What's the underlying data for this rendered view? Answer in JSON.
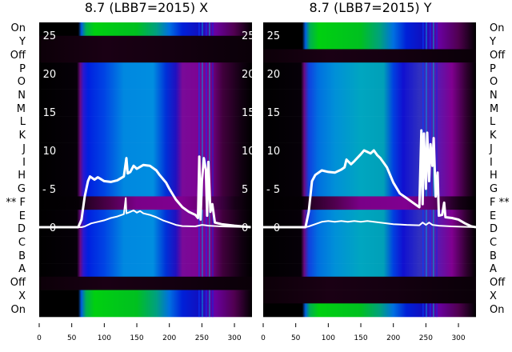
{
  "chart_data": [
    {
      "type": "heatmap",
      "title": "8.7 (LBB7=2015) X",
      "xlim": [
        0,
        327
      ],
      "x_ticks": [
        0,
        50,
        100,
        150,
        200,
        250,
        300
      ],
      "ylim": [
        -1.2,
        26.6
      ],
      "y_ticks": [
        0,
        5,
        10,
        15,
        20,
        25
      ],
      "row_labels": [
        "On",
        "Y",
        "Off",
        "P",
        "O",
        "N",
        "M",
        "L",
        "K",
        "J",
        "I",
        "H",
        "G",
        "** F",
        "E",
        "D",
        "C",
        "B",
        "A",
        "Off",
        "X",
        "On"
      ],
      "row_fill": [
        "green",
        "dark",
        "dark",
        "blue",
        "blue",
        "blue",
        "blue",
        "blue",
        "blue",
        "blue",
        "blue",
        "blue",
        "blue",
        "fdark",
        "blue",
        "blue",
        "blue",
        "blue",
        "blue",
        "dark",
        "green",
        "green"
      ],
      "series": [
        {
          "name": "upper",
          "x": [
            0,
            60,
            65,
            70,
            75,
            78,
            85,
            90,
            100,
            110,
            120,
            130,
            134,
            136,
            140,
            145,
            150,
            160,
            170,
            180,
            185,
            195,
            200,
            210,
            220,
            230,
            240,
            244,
            246,
            248,
            250,
            253,
            256,
            258,
            260,
            263,
            266,
            270,
            280,
            300,
            325
          ],
          "y": [
            0,
            0,
            1,
            4,
            6,
            6.6,
            6.2,
            6.5,
            6,
            5.9,
            6.1,
            6.6,
            9,
            7,
            7.2,
            8,
            7.6,
            8.1,
            8,
            7.4,
            6.8,
            5.8,
            5,
            3.6,
            2.6,
            2,
            1.6,
            1.2,
            9.2,
            1,
            6,
            9,
            7.5,
            1.5,
            8.5,
            2,
            3,
            0.6,
            0.4,
            0.2,
            0
          ]
        },
        {
          "name": "lower",
          "x": [
            0,
            65,
            70,
            80,
            90,
            100,
            110,
            120,
            130,
            133,
            134,
            137,
            140,
            145,
            150,
            155,
            160,
            170,
            180,
            190,
            200,
            210,
            220,
            240,
            250,
            260,
            280,
            325
          ],
          "y": [
            0,
            0,
            0.1,
            0.5,
            0.7,
            0.9,
            1.2,
            1.4,
            1.7,
            3.8,
            1.8,
            1.9,
            2.0,
            2.2,
            1.9,
            2.1,
            1.8,
            1.6,
            1.3,
            0.9,
            0.6,
            0.3,
            0.15,
            0.1,
            0.3,
            0.2,
            0.1,
            0
          ]
        }
      ]
    },
    {
      "type": "heatmap",
      "title": "8.7 (LBB7=2015) Y",
      "xlim": [
        0,
        327
      ],
      "x_ticks": [
        0,
        50,
        100,
        150,
        200,
        250,
        300
      ],
      "ylim": [
        -1.2,
        26.6
      ],
      "y_ticks": [
        0,
        5,
        10,
        15,
        20,
        25
      ],
      "row_labels": [
        "On",
        "Y",
        "Off",
        "P",
        "O",
        "N",
        "M",
        "L",
        "K",
        "J",
        "I",
        "H",
        "G",
        "F **",
        "E",
        "D",
        "C",
        "B",
        "A",
        "Off",
        "X",
        "On"
      ],
      "row_fill": [
        "green",
        "green",
        "dark",
        "blue",
        "blue",
        "blue",
        "blue",
        "blue",
        "blue",
        "blue",
        "blue",
        "blue",
        "blue",
        "fdark",
        "blue",
        "blue",
        "blue",
        "blue",
        "blue",
        "dark",
        "dark",
        "green"
      ],
      "series": [
        {
          "name": "upper",
          "x": [
            0,
            65,
            70,
            75,
            80,
            90,
            100,
            110,
            120,
            125,
            128,
            135,
            140,
            150,
            155,
            160,
            165,
            170,
            175,
            180,
            190,
            200,
            210,
            220,
            230,
            240,
            243,
            245,
            247,
            250,
            252,
            255,
            257,
            260,
            262,
            265,
            268,
            270,
            275,
            278,
            280,
            290,
            300,
            310,
            320,
            327
          ],
          "y": [
            0,
            0,
            2,
            6,
            6.8,
            7.4,
            7.2,
            7.1,
            7.5,
            7.8,
            8.8,
            8.2,
            8.6,
            9.5,
            10,
            9.8,
            9.6,
            10,
            9.4,
            9,
            7.8,
            5.8,
            4.4,
            3.8,
            3.2,
            2.6,
            12.6,
            3,
            12.2,
            5,
            12.3,
            6,
            10.8,
            8,
            11.6,
            4,
            7.1,
            1.5,
            1.6,
            3.2,
            1.3,
            1.2,
            1,
            0.5,
            0.1,
            0
          ]
        },
        {
          "name": "lower",
          "x": [
            0,
            65,
            70,
            80,
            90,
            100,
            110,
            120,
            130,
            140,
            150,
            160,
            170,
            180,
            190,
            200,
            210,
            220,
            240,
            245,
            250,
            255,
            260,
            270,
            290,
            327
          ],
          "y": [
            0,
            0,
            0.1,
            0.4,
            0.7,
            0.8,
            0.7,
            0.8,
            0.7,
            0.8,
            0.7,
            0.8,
            0.7,
            0.6,
            0.5,
            0.4,
            0.35,
            0.3,
            0.25,
            0.6,
            0.3,
            0.6,
            0.3,
            0.2,
            0.1,
            0
          ]
        }
      ]
    }
  ]
}
